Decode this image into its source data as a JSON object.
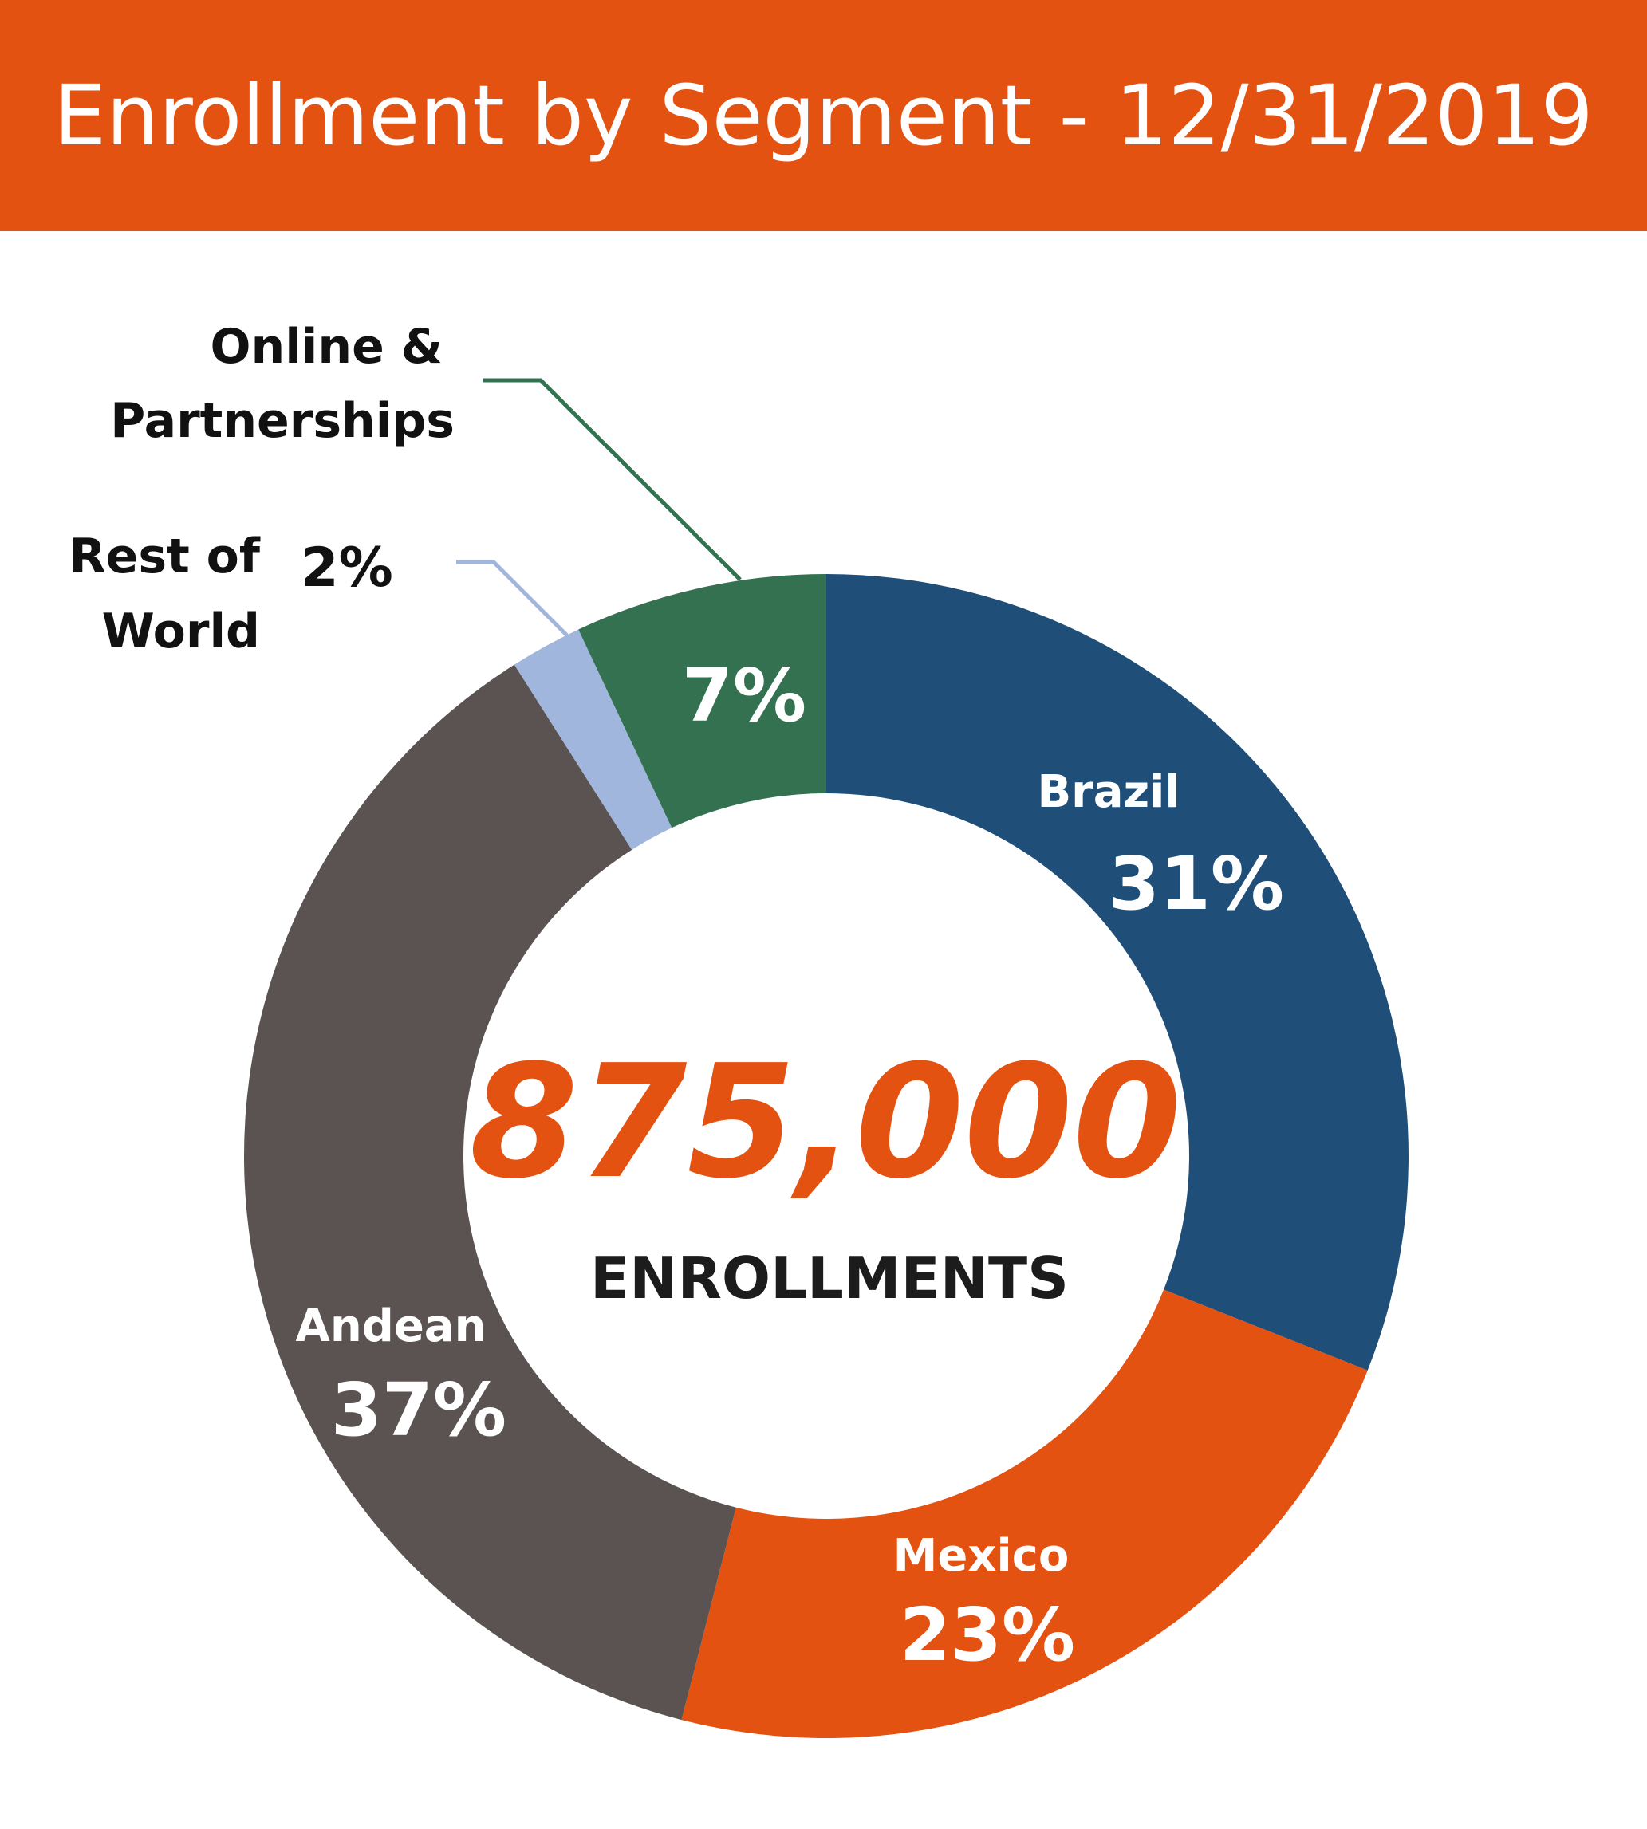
{
  "title": "Enrollment by Segment - 12/31/2019",
  "colors": {
    "banner": "#e45212",
    "brazil": "#1f4f78",
    "mexico": "#e45212",
    "andean": "#5a5351",
    "rest_of_world": "#a0b6dc",
    "online": "#337150",
    "center_number": "#e45212"
  },
  "chart_data": {
    "type": "pie",
    "title": "Enrollment by Segment - 12/31/2019",
    "total_value": "875,000",
    "total_label": "ENROLLMENTS",
    "order": "clockwise from 12 o'clock",
    "slices": [
      {
        "key": "brazil",
        "label": "Brazil",
        "value": 31,
        "display": "31%",
        "color": "#1f4f78"
      },
      {
        "key": "mexico",
        "label": "Mexico",
        "value": 23,
        "display": "23%",
        "color": "#e45212"
      },
      {
        "key": "andean",
        "label": "Andean",
        "value": 37,
        "display": "37%",
        "color": "#5a5351"
      },
      {
        "key": "rest_of_world",
        "label": "Rest of World",
        "label_lines": [
          "Rest of",
          "World"
        ],
        "value": 2,
        "display": "2%",
        "color": "#a0b6dc"
      },
      {
        "key": "online",
        "label": "Online & Partnerships",
        "label_lines": [
          "Online &",
          "Partnerships"
        ],
        "value": 7,
        "display": "7%",
        "color": "#337150"
      }
    ]
  }
}
